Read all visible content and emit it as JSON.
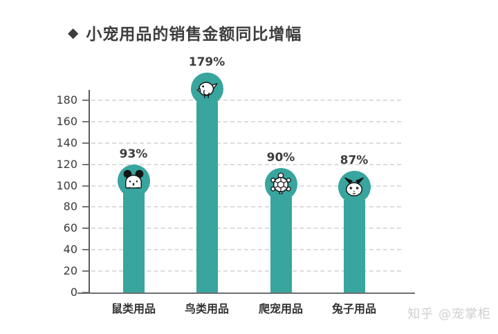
{
  "title": {
    "diamond": "◆",
    "text": "小宠用品的销售金额同比增幅"
  },
  "watermark": {
    "text": "知乎 @宠掌柜"
  },
  "colors": {
    "bar": "#38a59e",
    "axis": "#5a5a5a",
    "grid": "#dcdcdc",
    "text": "#3d3d3d",
    "watermark": "#cfcfcf"
  },
  "chart_data": {
    "type": "bar",
    "title": "小宠用品的销售金额同比增幅",
    "categories": [
      "鼠类用品",
      "鸟类用品",
      "爬宠用品",
      "兔子用品"
    ],
    "values": [
      93,
      179,
      90,
      87
    ],
    "value_labels": [
      "93%",
      "179%",
      "90%",
      "87%"
    ],
    "icons": [
      "mouse-icon",
      "bird-icon",
      "turtle-icon",
      "rabbit-icon"
    ],
    "xlabel": "",
    "ylabel": "",
    "ylim": [
      0,
      180
    ],
    "ytick_step": 20,
    "yticks": [
      0,
      20,
      40,
      60,
      80,
      100,
      120,
      140,
      160,
      180
    ],
    "grid": "dashed-horizontal",
    "legend": false
  }
}
